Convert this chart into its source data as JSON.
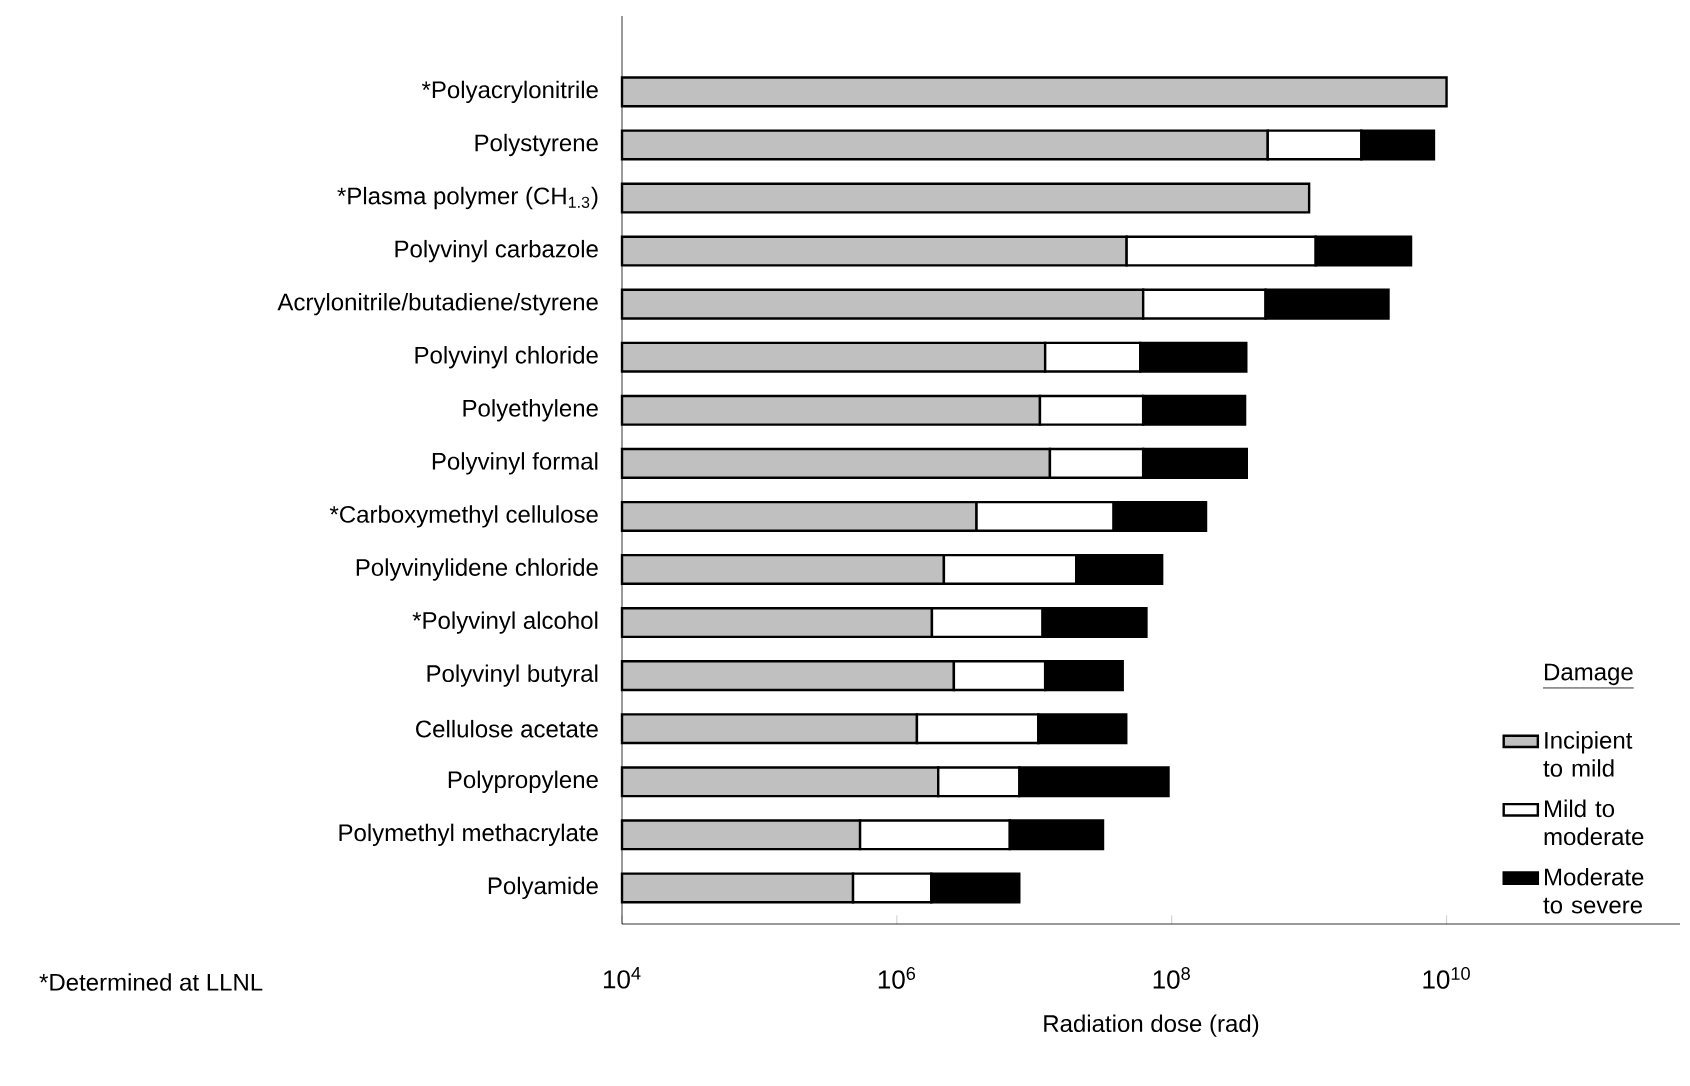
{
  "chart_data": {
    "type": "bar",
    "orientation": "horizontal",
    "stacked": true,
    "log": "x",
    "xlabel": "Radiation dose (rad)",
    "legend_title": "Damage",
    "legend": "bottom right",
    "annotations": [
      "*Determined at LLNL"
    ],
    "categories": [
      "*Polyacrylonitrile",
      "Polystyrene",
      "*Plasma polymer (CH$_{1.3}$)",
      "Polyvinyl carbazole",
      "Acrylonitrile/butadiene/styrene",
      "Polyvinyl chloride",
      "Polyethylene",
      "Polyvinyl formal",
      "*Carboxymethyl cellulose",
      "Polyvinylidene chloride",
      "*Polyvinyl alcohol",
      "Polyvinyl butyral",
      "Cellulose acetate",
      "Polypropylene",
      "Polymethyl methacrylate",
      "Polyamide"
    ],
    "xlim": [
      10000,
      500000000000
    ],
    "xticks": [
      {
        "value": 10000,
        "label": "10$^{4}$"
      },
      {
        "value": 1000000,
        "label": "10$^{6}$"
      },
      {
        "value": 100000000,
        "label": "10$^{8}$"
      },
      {
        "value": 10000000000,
        "label": "10$^{10}$"
      }
    ],
    "series": [
      {
        "name": "Incipient to mild",
        "color": "#c0c0c0",
        "values": [
          10000000000.0,
          500000000.0,
          1000000000.0,
          47000000.0,
          62000000.0,
          12000000.0,
          11000000.0,
          13000000.0,
          3800000.0,
          2200000.0,
          1800000.0,
          2600000.0,
          1400000.0,
          2000000.0,
          540000.0,
          480000.0
        ]
      },
      {
        "name": "Mild to moderate",
        "color": "#ffffff",
        "values": [
          null,
          1900000000.0,
          null,
          1070000000.0,
          420000000.0,
          47000000.0,
          51000000.0,
          49000000.0,
          34000000.0,
          18000000.0,
          9700000.0,
          9400000.0,
          9300000.0,
          5800000.0,
          6100000.0,
          1300000.0
        ]
      },
      {
        "name": "Moderate to severe",
        "color": "#000000",
        "values": [
          null,
          5700000000.0,
          null,
          4400000000.0,
          3300000000.0,
          290000000.0,
          280000000.0,
          290000000.0,
          140000000.0,
          65000000.0,
          54000000.0,
          32000000.0,
          36000000.0,
          87000000.0,
          25000000.0,
          6000000.0
        ]
      }
    ]
  }
}
